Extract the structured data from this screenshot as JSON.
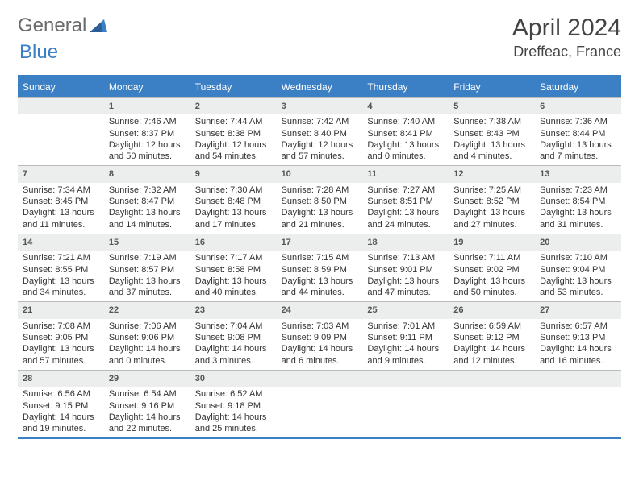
{
  "brand": {
    "part1": "General",
    "part2": "Blue"
  },
  "title": "April 2024",
  "location": "Dreffeac, France",
  "colors": {
    "brand_blue": "#3b7fc4",
    "brand_gray": "#6b6b6b",
    "header_bg": "#3b7fc4",
    "header_text": "#ffffff",
    "daynum_bg": "#eceeee",
    "border": "#bbbbbb",
    "text": "#333333"
  },
  "weekdays": [
    "Sunday",
    "Monday",
    "Tuesday",
    "Wednesday",
    "Thursday",
    "Friday",
    "Saturday"
  ],
  "layout": {
    "first_weekday_index": 1,
    "days_in_month": 30,
    "cells": 35
  },
  "days": {
    "1": {
      "sunrise": "7:46 AM",
      "sunset": "8:37 PM",
      "daylight": "12 hours and 50 minutes."
    },
    "2": {
      "sunrise": "7:44 AM",
      "sunset": "8:38 PM",
      "daylight": "12 hours and 54 minutes."
    },
    "3": {
      "sunrise": "7:42 AM",
      "sunset": "8:40 PM",
      "daylight": "12 hours and 57 minutes."
    },
    "4": {
      "sunrise": "7:40 AM",
      "sunset": "8:41 PM",
      "daylight": "13 hours and 0 minutes."
    },
    "5": {
      "sunrise": "7:38 AM",
      "sunset": "8:43 PM",
      "daylight": "13 hours and 4 minutes."
    },
    "6": {
      "sunrise": "7:36 AM",
      "sunset": "8:44 PM",
      "daylight": "13 hours and 7 minutes."
    },
    "7": {
      "sunrise": "7:34 AM",
      "sunset": "8:45 PM",
      "daylight": "13 hours and 11 minutes."
    },
    "8": {
      "sunrise": "7:32 AM",
      "sunset": "8:47 PM",
      "daylight": "13 hours and 14 minutes."
    },
    "9": {
      "sunrise": "7:30 AM",
      "sunset": "8:48 PM",
      "daylight": "13 hours and 17 minutes."
    },
    "10": {
      "sunrise": "7:28 AM",
      "sunset": "8:50 PM",
      "daylight": "13 hours and 21 minutes."
    },
    "11": {
      "sunrise": "7:27 AM",
      "sunset": "8:51 PM",
      "daylight": "13 hours and 24 minutes."
    },
    "12": {
      "sunrise": "7:25 AM",
      "sunset": "8:52 PM",
      "daylight": "13 hours and 27 minutes."
    },
    "13": {
      "sunrise": "7:23 AM",
      "sunset": "8:54 PM",
      "daylight": "13 hours and 31 minutes."
    },
    "14": {
      "sunrise": "7:21 AM",
      "sunset": "8:55 PM",
      "daylight": "13 hours and 34 minutes."
    },
    "15": {
      "sunrise": "7:19 AM",
      "sunset": "8:57 PM",
      "daylight": "13 hours and 37 minutes."
    },
    "16": {
      "sunrise": "7:17 AM",
      "sunset": "8:58 PM",
      "daylight": "13 hours and 40 minutes."
    },
    "17": {
      "sunrise": "7:15 AM",
      "sunset": "8:59 PM",
      "daylight": "13 hours and 44 minutes."
    },
    "18": {
      "sunrise": "7:13 AM",
      "sunset": "9:01 PM",
      "daylight": "13 hours and 47 minutes."
    },
    "19": {
      "sunrise": "7:11 AM",
      "sunset": "9:02 PM",
      "daylight": "13 hours and 50 minutes."
    },
    "20": {
      "sunrise": "7:10 AM",
      "sunset": "9:04 PM",
      "daylight": "13 hours and 53 minutes."
    },
    "21": {
      "sunrise": "7:08 AM",
      "sunset": "9:05 PM",
      "daylight": "13 hours and 57 minutes."
    },
    "22": {
      "sunrise": "7:06 AM",
      "sunset": "9:06 PM",
      "daylight": "14 hours and 0 minutes."
    },
    "23": {
      "sunrise": "7:04 AM",
      "sunset": "9:08 PM",
      "daylight": "14 hours and 3 minutes."
    },
    "24": {
      "sunrise": "7:03 AM",
      "sunset": "9:09 PM",
      "daylight": "14 hours and 6 minutes."
    },
    "25": {
      "sunrise": "7:01 AM",
      "sunset": "9:11 PM",
      "daylight": "14 hours and 9 minutes."
    },
    "26": {
      "sunrise": "6:59 AM",
      "sunset": "9:12 PM",
      "daylight": "14 hours and 12 minutes."
    },
    "27": {
      "sunrise": "6:57 AM",
      "sunset": "9:13 PM",
      "daylight": "14 hours and 16 minutes."
    },
    "28": {
      "sunrise": "6:56 AM",
      "sunset": "9:15 PM",
      "daylight": "14 hours and 19 minutes."
    },
    "29": {
      "sunrise": "6:54 AM",
      "sunset": "9:16 PM",
      "daylight": "14 hours and 22 minutes."
    },
    "30": {
      "sunrise": "6:52 AM",
      "sunset": "9:18 PM",
      "daylight": "14 hours and 25 minutes."
    }
  },
  "labels": {
    "sunrise": "Sunrise:",
    "sunset": "Sunset:",
    "daylight": "Daylight:"
  }
}
